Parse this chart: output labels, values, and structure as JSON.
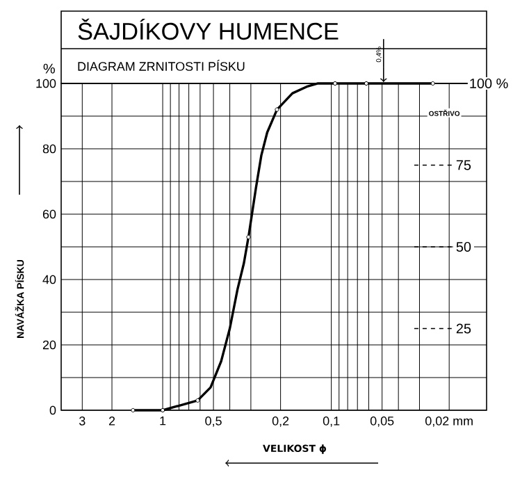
{
  "chart_data": {
    "type": "line",
    "title": "ŠAJDÍKOVY HUMENCE",
    "subtitle": "DIAGRAM ZRNITOSTI PÍSKU",
    "xlabel": "VELIKOST ϕ",
    "ylabel": "NAVÁŽKA PÍSKU",
    "annotations": [
      "%",
      "100 %",
      "OSTŘIVO",
      {
        "text": "0,4%",
        "x": 0.049,
        "y": 100
      }
    ],
    "series": [
      {
        "color": "#000000",
        "marker": "none",
        "x": [
          1.5,
          1,
          0.62,
          0.52,
          0.45,
          0.4,
          0.36,
          0.33,
          0.31,
          0.28,
          0.26,
          0.24,
          0.21,
          0.17,
          0.14,
          0.12,
          0.095,
          0.062,
          0.025
        ],
        "values": [
          0,
          0,
          3,
          7,
          15,
          25,
          37,
          45,
          53,
          68,
          78,
          85,
          92,
          97,
          99,
          100,
          100,
          100,
          100
        ]
      },
      {
        "type": "scatter",
        "color": "#000000",
        "marker": "circle",
        "x": [
          1.5,
          1,
          0.62,
          0.31,
          0.21,
          0.095,
          0.062,
          0.025
        ],
        "values": [
          0,
          0,
          3,
          53,
          92,
          100,
          100,
          100
        ]
      }
    ],
    "log": "x",
    "xlim": [
      4,
      0.012
    ],
    "ylim": [
      0,
      100
    ],
    "xticks": [
      3,
      2,
      1,
      {
        "value": 0.9,
        "label": null
      },
      {
        "value": 0.8,
        "label": null
      },
      {
        "value": 0.7,
        "label": null
      },
      {
        "value": 0.6,
        "label": null
      },
      {
        "value": 0.5,
        "label": "0,5"
      },
      {
        "value": 0.4,
        "label": null
      },
      {
        "value": 0.3,
        "label": null
      },
      {
        "value": 0.2,
        "label": "0,2"
      },
      {
        "value": 0.1,
        "label": "0,1"
      },
      {
        "value": 0.09,
        "label": null
      },
      {
        "value": 0.08,
        "label": null
      },
      {
        "value": 0.07,
        "label": null
      },
      {
        "value": 0.06,
        "label": null
      },
      {
        "value": 0.05,
        "label": "0,05"
      },
      {
        "value": 0.04,
        "label": null
      },
      {
        "value": 0.03,
        "label": null
      },
      {
        "value": 0.02,
        "label": "0,02 mm"
      }
    ],
    "yticks": [
      0,
      {
        "value": 10,
        "label": null
      },
      20,
      {
        "value": 30,
        "label": null
      },
      40,
      {
        "value": 50,
        "label": null
      },
      60,
      {
        "value": 70,
        "label": null
      },
      80,
      {
        "value": 90,
        "label": null
      },
      100
    ],
    "grid": true,
    "ref_lines": [
      {
        "axis": "y",
        "value": 75,
        "label": "75",
        "line_style": "dashed"
      },
      {
        "axis": "y",
        "value": 50,
        "label": "50",
        "line_style": "dashed"
      },
      {
        "axis": "y",
        "value": 25,
        "label": "25",
        "line_style": "dashed"
      }
    ]
  }
}
